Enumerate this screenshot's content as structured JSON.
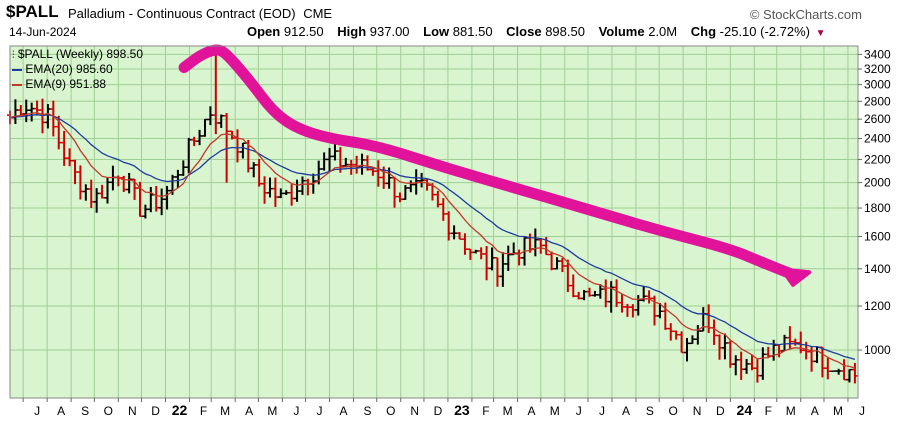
{
  "header": {
    "symbol": "$PALL",
    "description": "Palladium - Continuous Contract (EOD)",
    "exchange": "CME",
    "brand": "© StockCharts.com",
    "date": "14-Jun-2024",
    "open_label": "Open",
    "open": "912.50",
    "high_label": "High",
    "high": "937.00",
    "low_label": "Low",
    "low": "881.50",
    "close_label": "Close",
    "close": "898.50",
    "volume_label": "Volume",
    "volume": "2.0M",
    "chg_label": "Chg",
    "chg": "-25.10 (-2.72%)"
  },
  "colors": {
    "plot_bg": "#d9f5cf",
    "grid": "#9fcf95",
    "up_bar": "#000000",
    "down_bar": "#cc0000",
    "ema20": "#1f3b9e",
    "ema9": "#c0392b",
    "annotation": "#e0139a"
  },
  "chart_data": {
    "type": "bar",
    "interval": "weekly",
    "ylim": [
      820,
      3520
    ],
    "y_ticks": [
      1000,
      1200,
      1400,
      1600,
      1800,
      2000,
      2200,
      2400,
      2600,
      2800,
      3000,
      3200,
      3400
    ],
    "y_scale": "log",
    "x_ticks": [
      {
        "label": "J",
        "date": "2021-07-01"
      },
      {
        "label": "A",
        "date": "2021-08-01"
      },
      {
        "label": "S",
        "date": "2021-09-01"
      },
      {
        "label": "O",
        "date": "2021-10-01"
      },
      {
        "label": "N",
        "date": "2021-11-01"
      },
      {
        "label": "D",
        "date": "2021-12-01"
      },
      {
        "label": "22",
        "date": "2022-01-01",
        "bold": true
      },
      {
        "label": "F",
        "date": "2022-02-01"
      },
      {
        "label": "M",
        "date": "2022-03-01"
      },
      {
        "label": "A",
        "date": "2022-04-01"
      },
      {
        "label": "M",
        "date": "2022-05-01"
      },
      {
        "label": "J",
        "date": "2022-06-01"
      },
      {
        "label": "J",
        "date": "2022-07-01"
      },
      {
        "label": "A",
        "date": "2022-08-01"
      },
      {
        "label": "S",
        "date": "2022-09-01"
      },
      {
        "label": "O",
        "date": "2022-10-01"
      },
      {
        "label": "N",
        "date": "2022-11-01"
      },
      {
        "label": "D",
        "date": "2022-12-01"
      },
      {
        "label": "23",
        "date": "2023-01-01",
        "bold": true
      },
      {
        "label": "F",
        "date": "2023-02-01"
      },
      {
        "label": "M",
        "date": "2023-03-01"
      },
      {
        "label": "A",
        "date": "2023-04-01"
      },
      {
        "label": "M",
        "date": "2023-05-01"
      },
      {
        "label": "J",
        "date": "2023-06-01"
      },
      {
        "label": "J",
        "date": "2023-07-01"
      },
      {
        "label": "A",
        "date": "2023-08-01"
      },
      {
        "label": "S",
        "date": "2023-09-01"
      },
      {
        "label": "O",
        "date": "2023-10-01"
      },
      {
        "label": "N",
        "date": "2023-11-01"
      },
      {
        "label": "D",
        "date": "2023-12-01"
      },
      {
        "label": "24",
        "date": "2024-01-01",
        "bold": true
      },
      {
        "label": "F",
        "date": "2024-02-01"
      },
      {
        "label": "M",
        "date": "2024-03-01"
      },
      {
        "label": "A",
        "date": "2024-04-01"
      },
      {
        "label": "M",
        "date": "2024-05-01"
      },
      {
        "label": "J",
        "date": "2024-06-01"
      }
    ],
    "x_range": [
      "2021-06-14",
      "2024-06-14"
    ],
    "legend": [
      {
        "name": "$PALL (Weekly) 898.50",
        "color": "#000000",
        "icon": "ohlc-bar-icon"
      },
      {
        "name": "EMA(20) 985.60",
        "color": "#1f3b9e",
        "icon": "line-icon"
      },
      {
        "name": "EMA(9) 951.88",
        "color": "#c0392b",
        "icon": "line-icon"
      }
    ],
    "series": [
      {
        "name": "$PALL (Weekly) 898.50",
        "kind": "ohlc",
        "close_by_month": [
          {
            "date": "2021-06-14",
            "close": 2620
          },
          {
            "date": "2021-07-01",
            "close": 2780
          },
          {
            "date": "2021-08-01",
            "close": 2640
          },
          {
            "date": "2021-09-01",
            "close": 2100
          },
          {
            "date": "2021-10-01",
            "close": 1860
          },
          {
            "date": "2021-11-01",
            "close": 2100
          },
          {
            "date": "2021-12-01",
            "close": 1780
          },
          {
            "date": "2022-01-01",
            "close": 1900
          },
          {
            "date": "2022-02-01",
            "close": 2300
          },
          {
            "date": "2022-03-01",
            "close": 2700
          },
          {
            "date": "2022-04-01",
            "close": 2400
          },
          {
            "date": "2022-05-01",
            "close": 2000
          },
          {
            "date": "2022-06-01",
            "close": 1860
          },
          {
            "date": "2022-07-01",
            "close": 2050
          },
          {
            "date": "2022-08-01",
            "close": 2200
          },
          {
            "date": "2022-09-01",
            "close": 2150
          },
          {
            "date": "2022-10-01",
            "close": 2100
          },
          {
            "date": "2022-11-01",
            "close": 1900
          },
          {
            "date": "2022-12-01",
            "close": 1950
          },
          {
            "date": "2023-01-01",
            "close": 1700
          },
          {
            "date": "2023-02-01",
            "close": 1500
          },
          {
            "date": "2023-03-01",
            "close": 1400
          },
          {
            "date": "2023-04-01",
            "close": 1520
          },
          {
            "date": "2023-05-01",
            "close": 1530
          },
          {
            "date": "2023-06-01",
            "close": 1350
          },
          {
            "date": "2023-07-01",
            "close": 1230
          },
          {
            "date": "2023-08-01",
            "close": 1260
          },
          {
            "date": "2023-09-01",
            "close": 1230
          },
          {
            "date": "2023-10-01",
            "close": 1180
          },
          {
            "date": "2023-11-01",
            "close": 1020
          },
          {
            "date": "2023-12-01",
            "close": 1150
          },
          {
            "date": "2024-01-01",
            "close": 980
          },
          {
            "date": "2024-02-01",
            "close": 930
          },
          {
            "date": "2024-03-01",
            "close": 1010
          },
          {
            "date": "2024-04-01",
            "close": 1020
          },
          {
            "date": "2024-05-01",
            "close": 960
          },
          {
            "date": "2024-06-14",
            "close": 898.5
          }
        ]
      },
      {
        "name": "EMA(20) 985.60",
        "kind": "ema",
        "period": 20
      },
      {
        "name": "EMA(9) 951.88",
        "kind": "ema",
        "period": 9
      }
    ],
    "annotation": {
      "kind": "hand-drawn-arrow",
      "color": "#e0139a",
      "points": [
        {
          "date": "2022-01-25",
          "value": 3220
        },
        {
          "date": "2022-02-15",
          "value": 3390
        },
        {
          "date": "2022-03-08",
          "value": 3480
        },
        {
          "date": "2022-03-20",
          "value": 3420
        },
        {
          "date": "2022-04-20",
          "value": 3050
        },
        {
          "date": "2022-05-20",
          "value": 2680
        },
        {
          "date": "2022-06-20",
          "value": 2500
        },
        {
          "date": "2022-08-01",
          "value": 2400
        },
        {
          "date": "2022-10-01",
          "value": 2330
        },
        {
          "date": "2023-01-01",
          "value": 2120
        },
        {
          "date": "2023-04-01",
          "value": 1950
        },
        {
          "date": "2023-07-01",
          "value": 1790
        },
        {
          "date": "2023-10-01",
          "value": 1640
        },
        {
          "date": "2024-01-01",
          "value": 1520
        },
        {
          "date": "2024-02-15",
          "value": 1430
        },
        {
          "date": "2024-03-20",
          "value": 1370
        }
      ],
      "head": [
        {
          "date": "2024-03-08",
          "value": 1395
        },
        {
          "date": "2024-03-22",
          "value": 1310
        },
        {
          "date": "2024-04-12",
          "value": 1380
        }
      ]
    }
  }
}
